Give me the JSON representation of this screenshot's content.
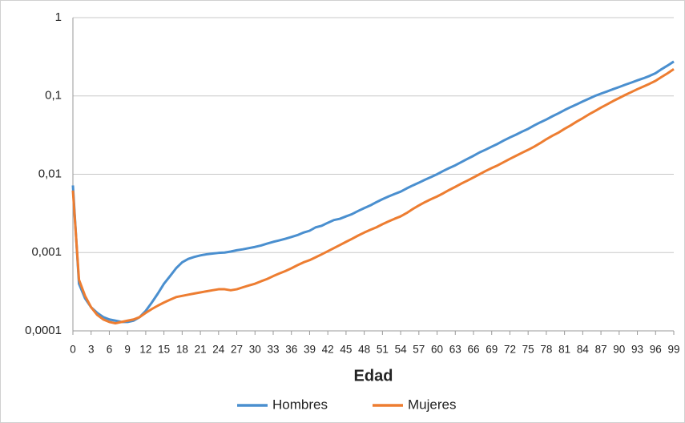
{
  "chart_data": {
    "type": "line",
    "x_label": "Edad",
    "log_y": true,
    "grid": true,
    "legend": "bottom",
    "x": [
      0,
      1,
      2,
      3,
      4,
      5,
      6,
      7,
      8,
      9,
      10,
      11,
      12,
      13,
      14,
      15,
      16,
      17,
      18,
      19,
      20,
      21,
      22,
      23,
      24,
      25,
      26,
      27,
      28,
      29,
      30,
      31,
      32,
      33,
      34,
      35,
      36,
      37,
      38,
      39,
      40,
      41,
      42,
      43,
      44,
      45,
      46,
      47,
      48,
      49,
      50,
      51,
      52,
      53,
      54,
      55,
      56,
      57,
      58,
      59,
      60,
      61,
      62,
      63,
      64,
      65,
      66,
      67,
      68,
      69,
      70,
      71,
      72,
      73,
      74,
      75,
      76,
      77,
      78,
      79,
      80,
      81,
      82,
      83,
      84,
      85,
      86,
      87,
      88,
      89,
      90,
      91,
      92,
      93,
      94,
      95,
      96,
      97,
      98,
      99
    ],
    "xlim": [
      0,
      99
    ],
    "xticks": [
      0,
      3,
      6,
      9,
      12,
      15,
      18,
      21,
      24,
      27,
      30,
      33,
      36,
      39,
      42,
      45,
      48,
      51,
      54,
      57,
      60,
      63,
      66,
      69,
      72,
      75,
      78,
      81,
      84,
      87,
      90,
      93,
      96,
      99
    ],
    "ylim": [
      0.0001,
      1
    ],
    "yticks": [
      {
        "value": 0.0001,
        "label": "0,0001"
      },
      {
        "value": 0.001,
        "label": "0,001"
      },
      {
        "value": 0.01,
        "label": "0,01"
      },
      {
        "value": 0.1,
        "label": "0,1"
      },
      1
    ],
    "series": [
      {
        "name": "Hombres",
        "color": "#4a8fcf",
        "values": [
          0.0072,
          0.0004,
          0.00026,
          0.0002,
          0.00017,
          0.00015,
          0.00014,
          0.000135,
          0.00013,
          0.00013,
          0.000135,
          0.00015,
          0.00018,
          0.00023,
          0.0003,
          0.0004,
          0.0005,
          0.00063,
          0.00075,
          0.00083,
          0.00088,
          0.00092,
          0.00095,
          0.00097,
          0.00099,
          0.001,
          0.00103,
          0.00107,
          0.0011,
          0.00114,
          0.00118,
          0.00123,
          0.0013,
          0.00137,
          0.00143,
          0.0015,
          0.00158,
          0.00167,
          0.0018,
          0.0019,
          0.0021,
          0.0022,
          0.0024,
          0.0026,
          0.0027,
          0.0029,
          0.0031,
          0.0034,
          0.0037,
          0.004,
          0.0044,
          0.0048,
          0.0052,
          0.0056,
          0.006,
          0.0066,
          0.0072,
          0.0078,
          0.0085,
          0.0092,
          0.01,
          0.011,
          0.012,
          0.013,
          0.0143,
          0.0157,
          0.0172,
          0.019,
          0.0206,
          0.0225,
          0.0245,
          0.027,
          0.0295,
          0.032,
          0.035,
          0.038,
          0.042,
          0.046,
          0.05,
          0.055,
          0.06,
          0.066,
          0.072,
          0.078,
          0.085,
          0.092,
          0.1,
          0.107,
          0.114,
          0.122,
          0.13,
          0.139,
          0.148,
          0.158,
          0.168,
          0.18,
          0.195,
          0.22,
          0.245,
          0.275
        ]
      },
      {
        "name": "Mujeres",
        "color": "#ed7d31",
        "values": [
          0.0062,
          0.00045,
          0.00028,
          0.0002,
          0.00016,
          0.00014,
          0.00013,
          0.000125,
          0.00013,
          0.000135,
          0.00014,
          0.00015,
          0.00017,
          0.00019,
          0.00021,
          0.00023,
          0.00025,
          0.00027,
          0.00028,
          0.00029,
          0.0003,
          0.00031,
          0.00032,
          0.00033,
          0.00034,
          0.00034,
          0.00033,
          0.00034,
          0.00036,
          0.00038,
          0.0004,
          0.00043,
          0.00046,
          0.0005,
          0.00054,
          0.00058,
          0.00063,
          0.00069,
          0.00075,
          0.0008,
          0.00087,
          0.00095,
          0.00104,
          0.00114,
          0.00125,
          0.00137,
          0.0015,
          0.00165,
          0.0018,
          0.00195,
          0.0021,
          0.0023,
          0.0025,
          0.0027,
          0.0029,
          0.0032,
          0.0036,
          0.004,
          0.0044,
          0.0048,
          0.0052,
          0.0057,
          0.0063,
          0.0069,
          0.0076,
          0.0083,
          0.0091,
          0.01,
          0.011,
          0.012,
          0.013,
          0.0143,
          0.0157,
          0.0172,
          0.0188,
          0.0205,
          0.0225,
          0.025,
          0.028,
          0.031,
          0.034,
          0.038,
          0.042,
          0.047,
          0.052,
          0.058,
          0.064,
          0.071,
          0.078,
          0.086,
          0.094,
          0.103,
          0.112,
          0.122,
          0.132,
          0.143,
          0.156,
          0.175,
          0.195,
          0.22
        ]
      }
    ]
  }
}
